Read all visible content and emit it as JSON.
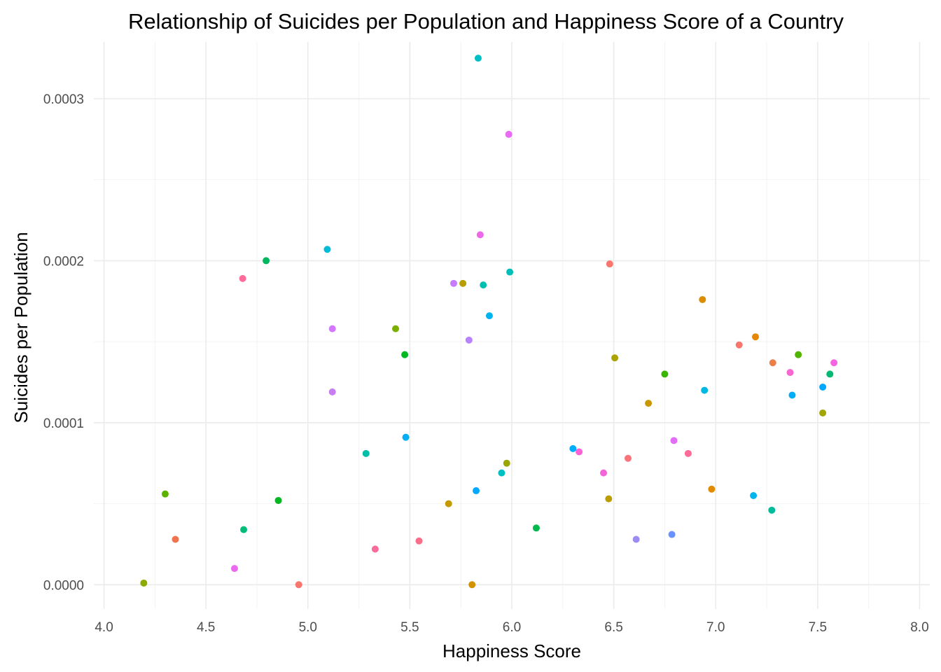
{
  "chart_data": {
    "type": "scatter",
    "title": "Relationship of Suicides per Population and Happiness Score of a Country",
    "xlabel": "Happiness Score",
    "ylabel": "Suicides per Population",
    "xlim": [
      3.95,
      8.05
    ],
    "ylim": [
      -1.5e-05,
      0.000335
    ],
    "x_ticks": [
      4.0,
      4.5,
      5.0,
      5.5,
      6.0,
      6.5,
      7.0,
      7.5,
      8.0
    ],
    "x_tick_labels": [
      "4.0",
      "4.5",
      "5.0",
      "5.5",
      "6.0",
      "6.5",
      "7.0",
      "7.5",
      "8.0"
    ],
    "y_ticks": [
      0,
      0.0001,
      0.0002,
      0.0003
    ],
    "y_tick_labels": [
      "0.0000",
      "0.0001",
      "0.0002",
      "0.0003"
    ],
    "grid": true,
    "legend": "none",
    "points": [
      {
        "x": 5.835,
        "y": 0.000325,
        "color": "#00BFC4"
      },
      {
        "x": 5.985,
        "y": 0.000278,
        "color": "#E76BF3"
      },
      {
        "x": 5.845,
        "y": 0.000216,
        "color": "#EE67E8"
      },
      {
        "x": 5.095,
        "y": 0.000207,
        "color": "#00BCD6"
      },
      {
        "x": 4.795,
        "y": 0.0002,
        "color": "#00B760"
      },
      {
        "x": 6.48,
        "y": 0.000198,
        "color": "#F8766D"
      },
      {
        "x": 5.99,
        "y": 0.000193,
        "color": "#00BFB8"
      },
      {
        "x": 4.68,
        "y": 0.000189,
        "color": "#FF6C99"
      },
      {
        "x": 5.715,
        "y": 0.000186,
        "color": "#C77CFF"
      },
      {
        "x": 5.76,
        "y": 0.000186,
        "color": "#B79F00"
      },
      {
        "x": 5.86,
        "y": 0.000185,
        "color": "#00BFB0"
      },
      {
        "x": 6.935,
        "y": 0.000176,
        "color": "#DE8C00"
      },
      {
        "x": 5.89,
        "y": 0.000166,
        "color": "#00B4F0"
      },
      {
        "x": 5.12,
        "y": 0.000158,
        "color": "#D277FF"
      },
      {
        "x": 5.43,
        "y": 0.000158,
        "color": "#7CAE00"
      },
      {
        "x": 7.195,
        "y": 0.000153,
        "color": "#E58700"
      },
      {
        "x": 5.79,
        "y": 0.000151,
        "color": "#B983FF"
      },
      {
        "x": 7.115,
        "y": 0.000148,
        "color": "#F8766D"
      },
      {
        "x": 5.475,
        "y": 0.000142,
        "color": "#00B81F"
      },
      {
        "x": 7.405,
        "y": 0.000142,
        "color": "#53B400"
      },
      {
        "x": 6.505,
        "y": 0.00014,
        "color": "#ABA300"
      },
      {
        "x": 7.58,
        "y": 0.000137,
        "color": "#F564E3"
      },
      {
        "x": 7.28,
        "y": 0.000137,
        "color": "#EC7E4A"
      },
      {
        "x": 7.365,
        "y": 0.000131,
        "color": "#F966D2"
      },
      {
        "x": 7.56,
        "y": 0.00013,
        "color": "#00BA74"
      },
      {
        "x": 6.75,
        "y": 0.00013,
        "color": "#39B600"
      },
      {
        "x": 7.525,
        "y": 0.000122,
        "color": "#00A9FF"
      },
      {
        "x": 6.945,
        "y": 0.00012,
        "color": "#00B9E3"
      },
      {
        "x": 5.12,
        "y": 0.000119,
        "color": "#C87DF0"
      },
      {
        "x": 7.375,
        "y": 0.000117,
        "color": "#00ADF9"
      },
      {
        "x": 6.67,
        "y": 0.000112,
        "color": "#C99800"
      },
      {
        "x": 7.525,
        "y": 0.000106,
        "color": "#A3A500"
      },
      {
        "x": 5.48,
        "y": 9.1e-05,
        "color": "#00B0F6"
      },
      {
        "x": 6.795,
        "y": 8.9e-05,
        "color": "#E36EF6"
      },
      {
        "x": 6.3,
        "y": 8.4e-05,
        "color": "#00ADFA"
      },
      {
        "x": 6.33,
        "y": 8.2e-05,
        "color": "#FC61D5"
      },
      {
        "x": 6.865,
        "y": 8.1e-05,
        "color": "#FF6A98"
      },
      {
        "x": 5.285,
        "y": 8.1e-05,
        "color": "#00BFA8"
      },
      {
        "x": 6.57,
        "y": 7.8e-05,
        "color": "#FB727B"
      },
      {
        "x": 5.975,
        "y": 7.5e-05,
        "color": "#9AA700"
      },
      {
        "x": 6.45,
        "y": 6.9e-05,
        "color": "#F265D9"
      },
      {
        "x": 5.95,
        "y": 6.9e-05,
        "color": "#00BFC0"
      },
      {
        "x": 6.98,
        "y": 5.9e-05,
        "color": "#E08B00"
      },
      {
        "x": 5.825,
        "y": 5.8e-05,
        "color": "#00A8FF"
      },
      {
        "x": 4.3,
        "y": 5.6e-05,
        "color": "#5BB300"
      },
      {
        "x": 7.185,
        "y": 5.5e-05,
        "color": "#00B5EE"
      },
      {
        "x": 6.475,
        "y": 5.3e-05,
        "color": "#BB9D00"
      },
      {
        "x": 4.855,
        "y": 5.2e-05,
        "color": "#00B81F"
      },
      {
        "x": 5.69,
        "y": 5e-05,
        "color": "#C49A00"
      },
      {
        "x": 7.275,
        "y": 4.6e-05,
        "color": "#00BC9A"
      },
      {
        "x": 6.12,
        "y": 3.5e-05,
        "color": "#00B84D"
      },
      {
        "x": 4.685,
        "y": 3.4e-05,
        "color": "#00BD7A"
      },
      {
        "x": 6.785,
        "y": 3.1e-05,
        "color": "#6B93FF"
      },
      {
        "x": 6.61,
        "y": 2.8e-05,
        "color": "#9E8CF4"
      },
      {
        "x": 4.35,
        "y": 2.8e-05,
        "color": "#F0744F"
      },
      {
        "x": 5.545,
        "y": 2.7e-05,
        "color": "#FA6E8A"
      },
      {
        "x": 5.33,
        "y": 2.2e-05,
        "color": "#F96A9D"
      },
      {
        "x": 4.64,
        "y": 1e-05,
        "color": "#EB69EE"
      },
      {
        "x": 4.195,
        "y": 1e-06,
        "color": "#8CAB00"
      },
      {
        "x": 4.955,
        "y": 0.0,
        "color": "#F8766D"
      },
      {
        "x": 5.805,
        "y": 0.0,
        "color": "#D39200"
      }
    ]
  }
}
